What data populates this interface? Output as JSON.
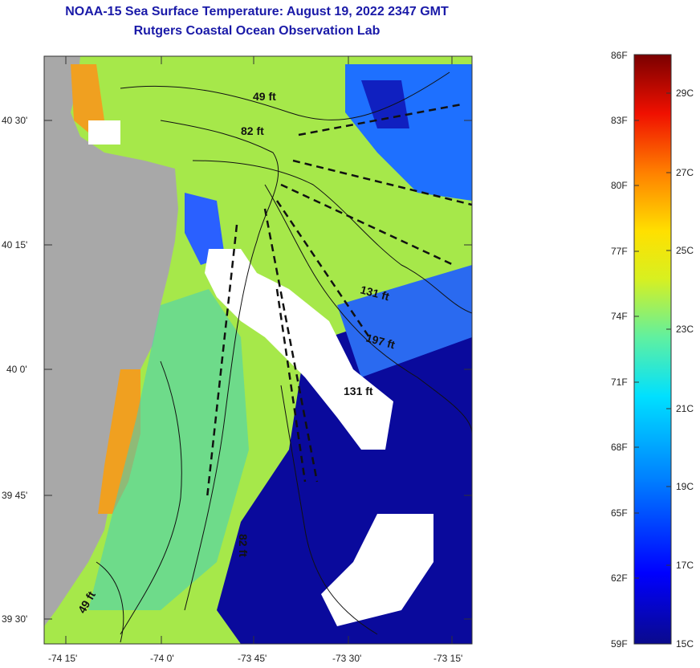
{
  "title": {
    "line1": "NOAA-15 Sea Surface Temperature:  August 19, 2022 2347 GMT",
    "line2": "Rutgers Coastal Ocean Observation Lab"
  },
  "map": {
    "lat_labels": [
      "40 30'",
      "40 15'",
      "40 0'",
      "39 45'",
      "39 30'"
    ],
    "lon_labels": [
      "-74 15'",
      "-74 0'",
      "-73 45'",
      "-73 30'",
      "-73 15'"
    ],
    "depth_labels": [
      "49 ft",
      "82 ft",
      "131 ft",
      "197 ft",
      "131 ft",
      "82 ft",
      "49 ft"
    ]
  },
  "colorbar": {
    "fahrenheit_labels": [
      "86F",
      "83F",
      "80F",
      "77F",
      "74F",
      "71F",
      "68F",
      "65F",
      "62F",
      "59F"
    ],
    "celsius_labels": [
      "29C",
      "27C",
      "25C",
      "23C",
      "21C",
      "19C",
      "17C",
      "15C"
    ],
    "range_f": [
      59,
      86
    ]
  },
  "colors": {
    "title": "#1a1aa8",
    "land": "#a8a8a8",
    "cloud": "#ffffff",
    "cold": "#0a0a8c",
    "warm": "#7a0000"
  }
}
